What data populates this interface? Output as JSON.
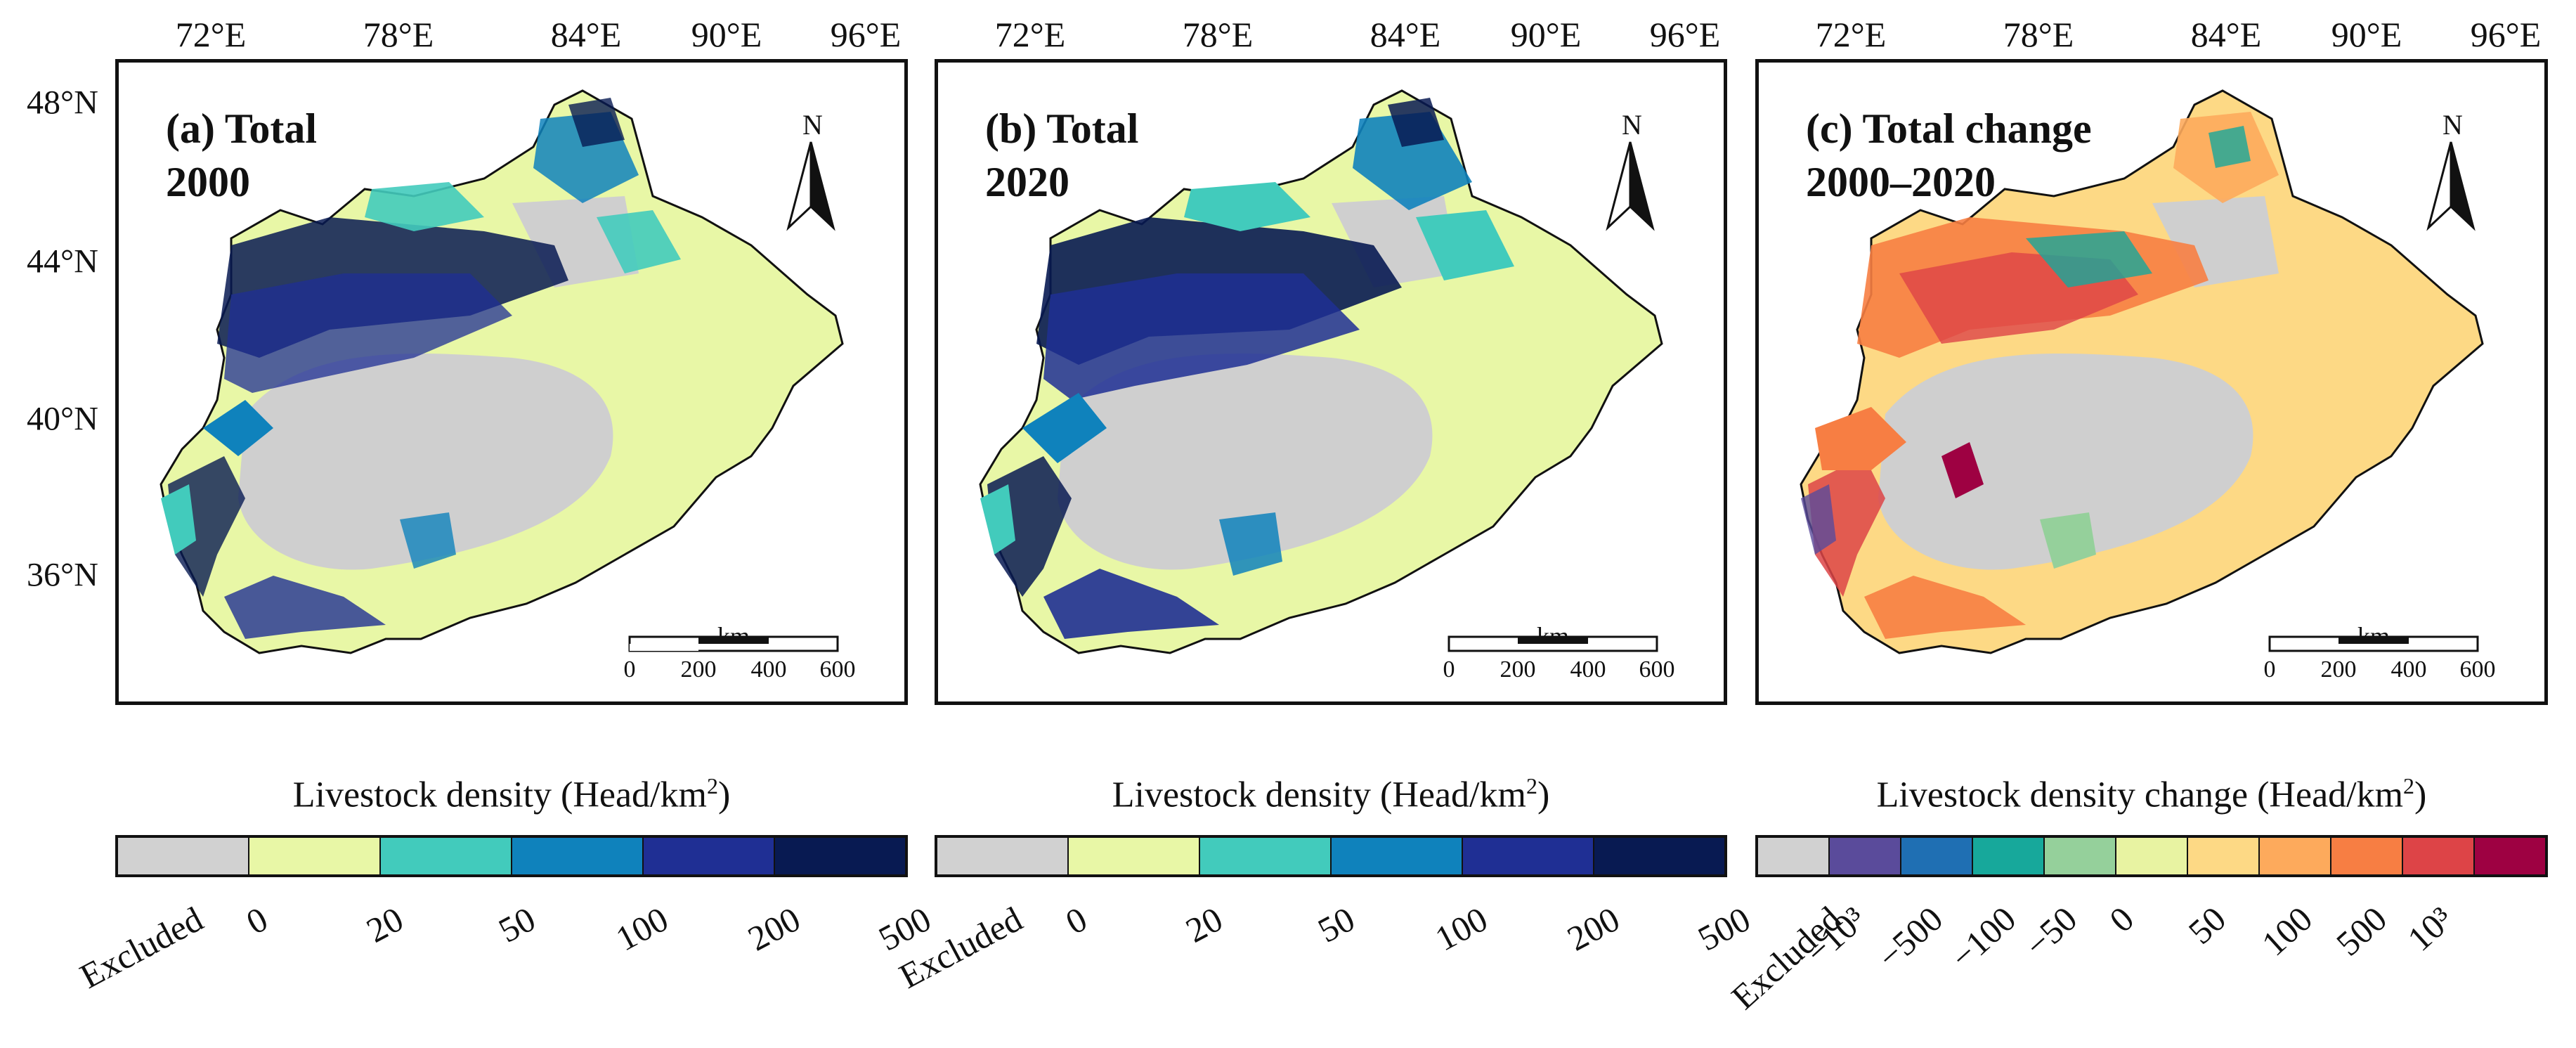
{
  "longitude_ticks": [
    "72°E",
    "78°E",
    "84°E",
    "90°E",
    "96°E"
  ],
  "latitude_ticks": [
    "48°N",
    "44°N",
    "40°N",
    "36°N"
  ],
  "panels": [
    {
      "id": "a",
      "title_line1": "(a) Total",
      "title_line2": "2000",
      "legend_title": "Livestock density (Head/km",
      "legend_sup": "2",
      "legend_close": ")",
      "legend_labels": [
        "Excluded",
        "0",
        "20",
        "50",
        "100",
        "200",
        "500"
      ],
      "legend_colors": [
        "#d1d1d1",
        "#e8f7a6",
        "#42cbbc",
        "#0f82bc",
        "#1f2f94",
        "#081a52"
      ]
    },
    {
      "id": "b",
      "title_line1": "(b) Total",
      "title_line2": "2020",
      "legend_title": "Livestock density (Head/km",
      "legend_sup": "2",
      "legend_close": ")",
      "legend_labels": [
        "Excluded",
        "0",
        "20",
        "50",
        "100",
        "200",
        "500"
      ],
      "legend_colors": [
        "#d1d1d1",
        "#e8f7a6",
        "#42cbbc",
        "#0f82bc",
        "#1f2f94",
        "#081a52"
      ]
    },
    {
      "id": "c",
      "title_line1": "(c) Total change",
      "title_line2": "2000–2020",
      "legend_title": "Livestock density change (Head/km",
      "legend_sup": "2",
      "legend_close": ")",
      "legend_labels": [
        "Excluded",
        "−10³",
        "−500",
        "−100",
        "−50",
        "0",
        "50",
        "100",
        "500",
        "10³"
      ],
      "legend_colors": [
        "#d1d1d1",
        "#5a4b9b",
        "#1f6fb3",
        "#17a89b",
        "#95d09b",
        "#e8f3a2",
        "#fdd985",
        "#fdaa5c",
        "#f77e43",
        "#dd4447",
        "#9e0142"
      ]
    }
  ],
  "north_arrow_label": "N",
  "scale_bar": {
    "unit": "km",
    "labels": [
      "0",
      "200",
      "400",
      "600"
    ]
  }
}
